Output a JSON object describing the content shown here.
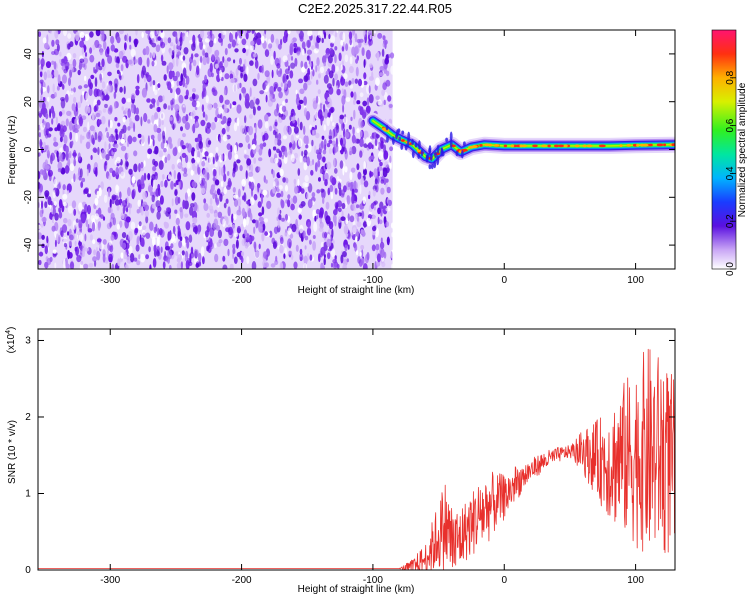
{
  "title": "C2E2.2025.317.22.44.R05",
  "colors": {
    "signal": "#e8302c",
    "noise_purple": "#7c2de0",
    "axis": "#000000",
    "background": "#ffffff"
  },
  "chart_data": [
    {
      "type": "heatmap",
      "name": "spectrogram",
      "xlabel": "Height of straight line (km)",
      "ylabel": "Frequency (Hz)",
      "xlim": [
        -355,
        130
      ],
      "ylim": [
        -50,
        50
      ],
      "xticks": [
        -300,
        -200,
        -100,
        0,
        100
      ],
      "yticks": [
        -40,
        -20,
        0,
        20,
        40
      ],
      "xtick_labels": [
        "-300",
        "-200",
        "-100",
        "0",
        "100"
      ],
      "ytick_labels": [
        "-40",
        "-20",
        "0",
        "20",
        "40"
      ],
      "noise_region_x": [
        -355,
        -85
      ],
      "signal_ridge": [
        {
          "x": -100,
          "y": 12
        },
        {
          "x": -92,
          "y": 9
        },
        {
          "x": -85,
          "y": 6
        },
        {
          "x": -78,
          "y": 4
        },
        {
          "x": -70,
          "y": 2
        },
        {
          "x": -60,
          "y": -3
        },
        {
          "x": -55,
          "y": -4
        },
        {
          "x": -48,
          "y": 0
        },
        {
          "x": -40,
          "y": 2
        },
        {
          "x": -33,
          "y": -1
        },
        {
          "x": -25,
          "y": 1
        },
        {
          "x": -15,
          "y": 2
        },
        {
          "x": 0,
          "y": 1.5
        },
        {
          "x": 20,
          "y": 1.5
        },
        {
          "x": 40,
          "y": 1.5
        },
        {
          "x": 60,
          "y": 1.5
        },
        {
          "x": 80,
          "y": 1.5
        },
        {
          "x": 100,
          "y": 1.8
        },
        {
          "x": 130,
          "y": 2
        }
      ],
      "colorbar": {
        "label": "Normalized spectral amplitude",
        "range": [
          0,
          1
        ],
        "ticks": [
          0.0,
          0.2,
          0.4,
          0.6,
          0.8
        ],
        "tick_labels": [
          "0.0",
          "0.2",
          "0.4",
          "0.6",
          "0.8"
        ]
      }
    },
    {
      "type": "line",
      "name": "snr",
      "xlabel": "Height of straight line (km)",
      "ylabel": "SNR (10 * v/v)",
      "scale_label": "(x10",
      "scale_exponent": "4",
      "xlim": [
        -355,
        130
      ],
      "ylim": [
        0,
        3.15
      ],
      "xticks": [
        -300,
        -200,
        -100,
        0,
        100
      ],
      "yticks": [
        0,
        1,
        2,
        3
      ],
      "xtick_labels": [
        "-300",
        "-200",
        "-100",
        "0",
        "100"
      ],
      "ytick_labels": [
        "0",
        "1",
        "2",
        "3"
      ],
      "envelope": [
        {
          "x": -355,
          "v": 0.02
        },
        {
          "x": -80,
          "v": 0.02
        },
        {
          "x": -70,
          "v": 0.04
        },
        {
          "x": -60,
          "v": 0.15
        },
        {
          "x": -50,
          "v": 0.45
        },
        {
          "x": -45,
          "v": 0.6
        },
        {
          "x": -38,
          "v": 0.3
        },
        {
          "x": -30,
          "v": 0.5
        },
        {
          "x": -20,
          "v": 0.7
        },
        {
          "x": -10,
          "v": 0.85
        },
        {
          "x": 0,
          "v": 0.95
        },
        {
          "x": 10,
          "v": 1.15
        },
        {
          "x": 20,
          "v": 1.3
        },
        {
          "x": 30,
          "v": 1.42
        },
        {
          "x": 40,
          "v": 1.5
        },
        {
          "x": 50,
          "v": 1.55
        },
        {
          "x": 60,
          "v": 1.55
        },
        {
          "x": 70,
          "v": 1.45
        },
        {
          "x": 80,
          "v": 1.4
        },
        {
          "x": 90,
          "v": 1.45
        },
        {
          "x": 100,
          "v": 1.5
        },
        {
          "x": 110,
          "v": 1.55
        },
        {
          "x": 120,
          "v": 1.5
        },
        {
          "x": 130,
          "v": 1.3
        }
      ],
      "noise_amp": [
        {
          "x": -355,
          "a": 0.0
        },
        {
          "x": -80,
          "a": 0.0
        },
        {
          "x": -60,
          "a": 0.2
        },
        {
          "x": -45,
          "a": 0.6
        },
        {
          "x": -30,
          "a": 0.4
        },
        {
          "x": -15,
          "a": 0.5
        },
        {
          "x": 0,
          "a": 0.3
        },
        {
          "x": 20,
          "a": 0.15
        },
        {
          "x": 50,
          "a": 0.08
        },
        {
          "x": 70,
          "a": 0.5
        },
        {
          "x": 90,
          "a": 1.0
        },
        {
          "x": 110,
          "a": 1.4
        },
        {
          "x": 130,
          "a": 1.2
        }
      ]
    }
  ]
}
